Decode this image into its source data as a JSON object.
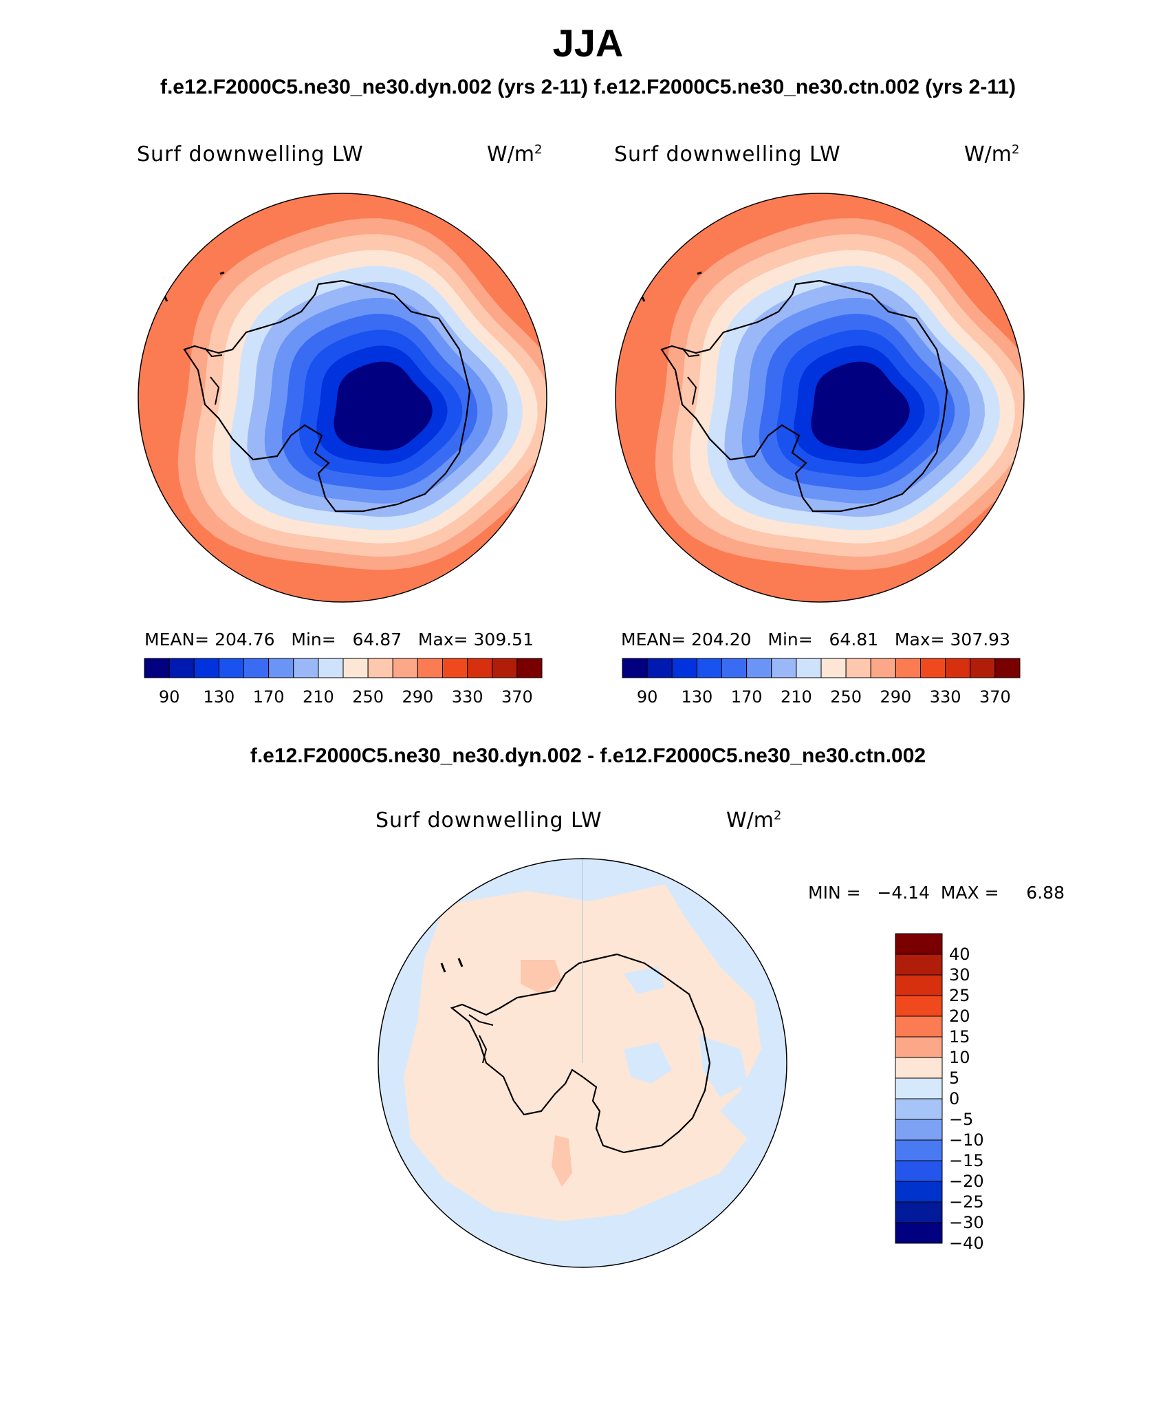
{
  "header": {
    "title": "JJA",
    "subtitle_top": "f.e12.F2000C5.ne30_ne30.dyn.002 (yrs 2-11)  f.e12.F2000C5.ne30_ne30.ctn.002 (yrs 2-11)",
    "subtitle_diff": "f.e12.F2000C5.ne30_ne30.dyn.002 - f.e12.F2000C5.ne30_ne30.ctn.002"
  },
  "panels": [
    {
      "variable": "Surf downwelling LW",
      "units_base": "W/m",
      "units_exp": "2",
      "stats": "MEAN= 204.76   Min=   64.87   Max= 309.51"
    },
    {
      "variable": "Surf downwelling LW",
      "units_base": "W/m",
      "units_exp": "2",
      "stats": "MEAN= 204.20   Min=   64.81   Max= 307.93"
    }
  ],
  "diff_panel": {
    "variable": "Surf downwelling LW",
    "units_base": "W/m",
    "units_exp": "2",
    "minmax": "MIN =   −4.14  MAX =     6.88"
  },
  "colorbar_abs": {
    "colors": [
      "#000080",
      "#0019b0",
      "#0033dd",
      "#1a52f0",
      "#3a6cf3",
      "#6a94f5",
      "#9ab8f7",
      "#cfe2fb",
      "#fde6d6",
      "#fdc8ae",
      "#fca787",
      "#fb7c53",
      "#f0491d",
      "#d7300f",
      "#b01e0a",
      "#7a0000"
    ],
    "labels": [
      "90",
      "130",
      "170",
      "210",
      "250",
      "290",
      "330",
      "370"
    ]
  },
  "colorbar_diff": {
    "colors": [
      "#7a0000",
      "#b01e0a",
      "#d7300f",
      "#f0491d",
      "#fb7c53",
      "#fca787",
      "#fde6d6",
      "#d6e8fb",
      "#a6c4f7",
      "#7da2f4",
      "#4a7af2",
      "#2456ee",
      "#0033cc",
      "#001a99",
      "#000080"
    ],
    "labels": [
      "40",
      "30",
      "25",
      "20",
      "15",
      "10",
      "5",
      "0",
      "−5",
      "−10",
      "−15",
      "−20",
      "−25",
      "−30",
      "−40"
    ]
  },
  "map": {
    "projection": "South polar stereographic",
    "ring_colors_abs": [
      "#fb7c53",
      "#fca787",
      "#fdc8ae",
      "#fde6d6",
      "#cfe2fb",
      "#9ab8f7",
      "#6a94f5",
      "#3a6cf3",
      "#1a52f0",
      "#0033dd",
      "#000080"
    ],
    "diff_colors": {
      "positive": "#fde6d6",
      "positive_strong": "#fdc8ae",
      "negative": "#d6e8fb",
      "negative_strong": "#a6c4f7"
    }
  }
}
